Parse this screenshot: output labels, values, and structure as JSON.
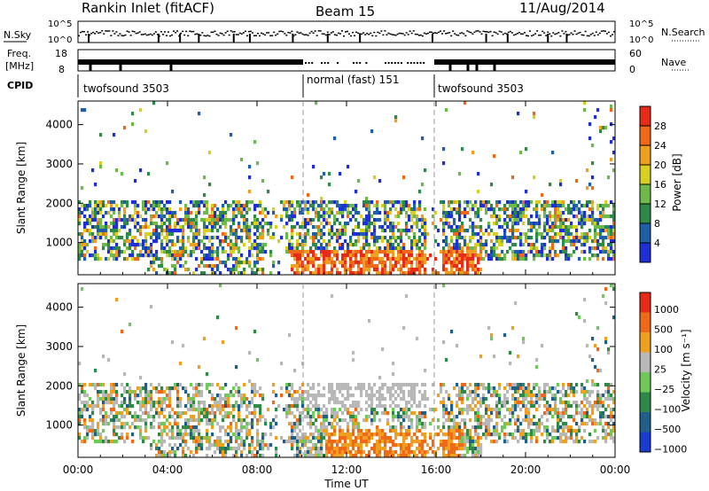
{
  "header": {
    "title": "Rankin Inlet (fitACF)",
    "beam": "Beam 15",
    "date": "11/Aug/2014"
  },
  "noise_panel": {
    "left_label": "N.Sky",
    "right_label": "N.Search",
    "left_ticks": [
      "10^5",
      "10^0"
    ],
    "right_ticks": [
      "10^5",
      "10^0"
    ]
  },
  "freq_panel": {
    "left_label_line1": "Freq.",
    "left_label_line2": "[MHz]",
    "right_label": "Nave",
    "left_ticks": [
      "18",
      "8"
    ],
    "right_ticks": [
      "60",
      "0"
    ]
  },
  "cpid": {
    "label": "CPID",
    "segments": [
      {
        "start": 0,
        "end": 10,
        "text": "twofsound 3503"
      },
      {
        "start": 10,
        "end": 16,
        "text": "normal (fast) 151"
      },
      {
        "start": 16,
        "end": 24,
        "text": "twofsound 3503"
      }
    ]
  },
  "chart_data": [
    {
      "type": "heatmap",
      "title": "",
      "xlabel": "Time UT",
      "ylabel": "Slant Range [km]",
      "x_ticks": [
        "00:00",
        "04:00",
        "08:00",
        "12:00",
        "16:00",
        "20:00",
        "00:00"
      ],
      "xlim": [
        0,
        24
      ],
      "ylim": [
        180,
        4600
      ],
      "y_ticks": [
        "1000",
        "2000",
        "3000",
        "4000"
      ],
      "colorbar": {
        "label": "Power [dB]",
        "tick_labels": [
          "4",
          "8",
          "12",
          "16",
          "20",
          "24",
          "28"
        ],
        "range": [
          0,
          30
        ]
      }
    },
    {
      "type": "heatmap",
      "title": "",
      "xlabel": "Time UT",
      "ylabel": "Slant Range [km]",
      "x_ticks": [
        "00:00",
        "04:00",
        "08:00",
        "12:00",
        "16:00",
        "20:00",
        "00:00"
      ],
      "xlim": [
        0,
        24
      ],
      "ylim": [
        180,
        4600
      ],
      "y_ticks": [
        "1000",
        "2000",
        "3000",
        "4000"
      ],
      "colorbar": {
        "label": "Velocity [m s⁻¹]",
        "tick_labels": [
          "1000",
          "500",
          "100",
          "25",
          "−25",
          "−100",
          "−500",
          "−1000"
        ]
      }
    }
  ],
  "colors": {
    "power_scale": [
      "#1f2fd6",
      "#1f5fa8",
      "#2f8a4a",
      "#6fb84a",
      "#d8d020",
      "#f0a020",
      "#ef6a18",
      "#e82a18"
    ],
    "velocity_scale": [
      "#1a3bd0",
      "#1f5f8a",
      "#2f8a4a",
      "#6fc85a",
      "#b8b8b8",
      "#f0a020",
      "#ef6a18",
      "#e82a18"
    ]
  }
}
